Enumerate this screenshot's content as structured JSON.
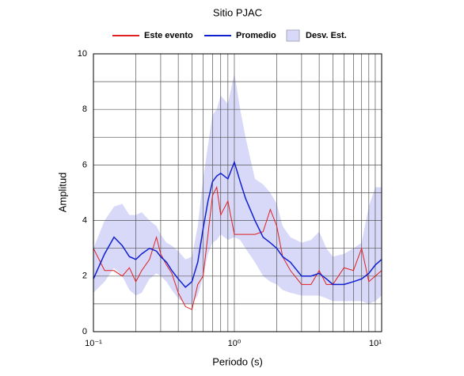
{
  "chart_data": {
    "type": "line",
    "title": "Sitio PJAC",
    "xlabel": "Periodo (s)",
    "ylabel": "Amplitud",
    "xscale": "log",
    "grid": true,
    "legend": "top",
    "xlim": [
      0.1,
      11.1
    ],
    "ylim": [
      0,
      10
    ],
    "xticks": [
      {
        "value": 0.1,
        "label": "10⁻¹"
      },
      {
        "value": 1,
        "label": "10⁰"
      },
      {
        "value": 10,
        "label": "10¹"
      }
    ],
    "xminor": [
      0.2,
      0.3,
      0.4,
      0.5,
      0.6,
      0.7,
      0.8,
      0.9,
      2,
      3,
      4,
      5,
      6,
      7,
      8,
      9
    ],
    "yticks": [
      0,
      2,
      4,
      6,
      8,
      10
    ],
    "yminor": [
      1,
      3,
      5,
      7,
      9
    ],
    "x": [
      0.1,
      0.12,
      0.14,
      0.16,
      0.18,
      0.2,
      0.22,
      0.25,
      0.28,
      0.3,
      0.33,
      0.36,
      0.4,
      0.45,
      0.5,
      0.55,
      0.6,
      0.65,
      0.7,
      0.75,
      0.8,
      0.9,
      1.0,
      1.1,
      1.2,
      1.4,
      1.6,
      1.8,
      2.0,
      2.2,
      2.5,
      3,
      3.5,
      4,
      4.5,
      5,
      6,
      7,
      8,
      9,
      10,
      11.1
    ],
    "band": {
      "name": "Desv. Est.",
      "color": "#d8d8f8",
      "lower": [
        1.4,
        1.8,
        2.3,
        2.0,
        1.5,
        1.3,
        1.4,
        1.9,
        2.1,
        2.0,
        1.8,
        1.5,
        1.2,
        1.0,
        1.0,
        1.3,
        2.0,
        2.8,
        3.2,
        3.3,
        3.5,
        3.3,
        3.4,
        3.3,
        3.0,
        2.5,
        2.0,
        1.8,
        1.7,
        1.5,
        1.4,
        1.3,
        1.3,
        1.3,
        1.2,
        1.1,
        1.1,
        1.1,
        1.1,
        1.0,
        1.1,
        1.3
      ],
      "upper": [
        3.0,
        4.0,
        4.5,
        4.6,
        4.2,
        4.2,
        4.3,
        4.0,
        3.8,
        3.5,
        3.2,
        3.1,
        2.9,
        2.6,
        2.7,
        3.8,
        5.5,
        6.7,
        7.8,
        8.0,
        8.5,
        8.2,
        9.3,
        8.0,
        7.0,
        5.5,
        5.3,
        5.0,
        4.6,
        3.8,
        3.4,
        3.2,
        3.3,
        3.6,
        3.0,
        2.7,
        2.8,
        3.0,
        3.2,
        4.5,
        5.2,
        5.2
      ]
    },
    "series": [
      {
        "name": "Este evento",
        "color": "#e02020",
        "values": [
          3.0,
          2.2,
          2.2,
          2.0,
          2.3,
          1.8,
          2.2,
          2.6,
          3.4,
          2.8,
          2.4,
          2.1,
          1.4,
          0.9,
          0.8,
          1.7,
          2.0,
          3.5,
          4.9,
          5.2,
          4.2,
          4.7,
          3.5,
          3.5,
          3.5,
          3.5,
          3.6,
          4.4,
          3.8,
          2.7,
          2.2,
          1.7,
          1.7,
          2.2,
          1.7,
          1.7,
          2.3,
          2.2,
          3.0,
          1.8,
          2.0,
          2.2
        ]
      },
      {
        "name": "Promedio",
        "color": "#1020d0",
        "values": [
          1.9,
          2.8,
          3.4,
          3.1,
          2.7,
          2.6,
          2.8,
          3.0,
          2.9,
          2.7,
          2.5,
          2.2,
          1.9,
          1.6,
          1.8,
          2.5,
          3.7,
          4.7,
          5.4,
          5.6,
          5.7,
          5.5,
          6.1,
          5.4,
          4.8,
          4.0,
          3.4,
          3.2,
          3.0,
          2.7,
          2.5,
          2.0,
          2.0,
          2.1,
          1.9,
          1.7,
          1.7,
          1.8,
          1.9,
          2.1,
          2.4,
          2.6
        ]
      }
    ]
  }
}
